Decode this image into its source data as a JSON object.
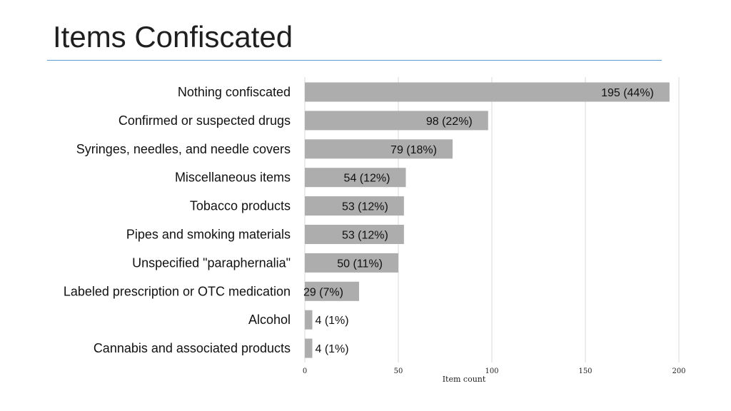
{
  "page": {
    "title": "Items Confiscated"
  },
  "chart_data": {
    "type": "bar",
    "orientation": "horizontal",
    "categories": [
      "Nothing confiscated",
      "Confirmed or suspected drugs",
      "Syringes, needles, and needle covers",
      "Miscellaneous items",
      "Tobacco products",
      "Pipes and smoking materials",
      "Unspecified \"paraphernalia\"",
      "Labeled prescription or OTC medication",
      "Alcohol",
      "Cannabis and associated products"
    ],
    "values": [
      195,
      98,
      79,
      54,
      53,
      53,
      50,
      29,
      4,
      4
    ],
    "data_labels": [
      "195 (44%)",
      "98 (22%)",
      "79 (18%)",
      "54 (12%)",
      "53 (12%)",
      "53 (12%)",
      "50 (11%)",
      "29 (7%)",
      "4 (1%)",
      "4 (1%)"
    ],
    "xlabel": "Item count",
    "ylabel": "",
    "xlim": [
      0,
      200
    ],
    "xticks": [
      0,
      50,
      100,
      150,
      200
    ],
    "grid": true,
    "bar_color": "#adadad",
    "grid_color": "#d9d9d9"
  }
}
